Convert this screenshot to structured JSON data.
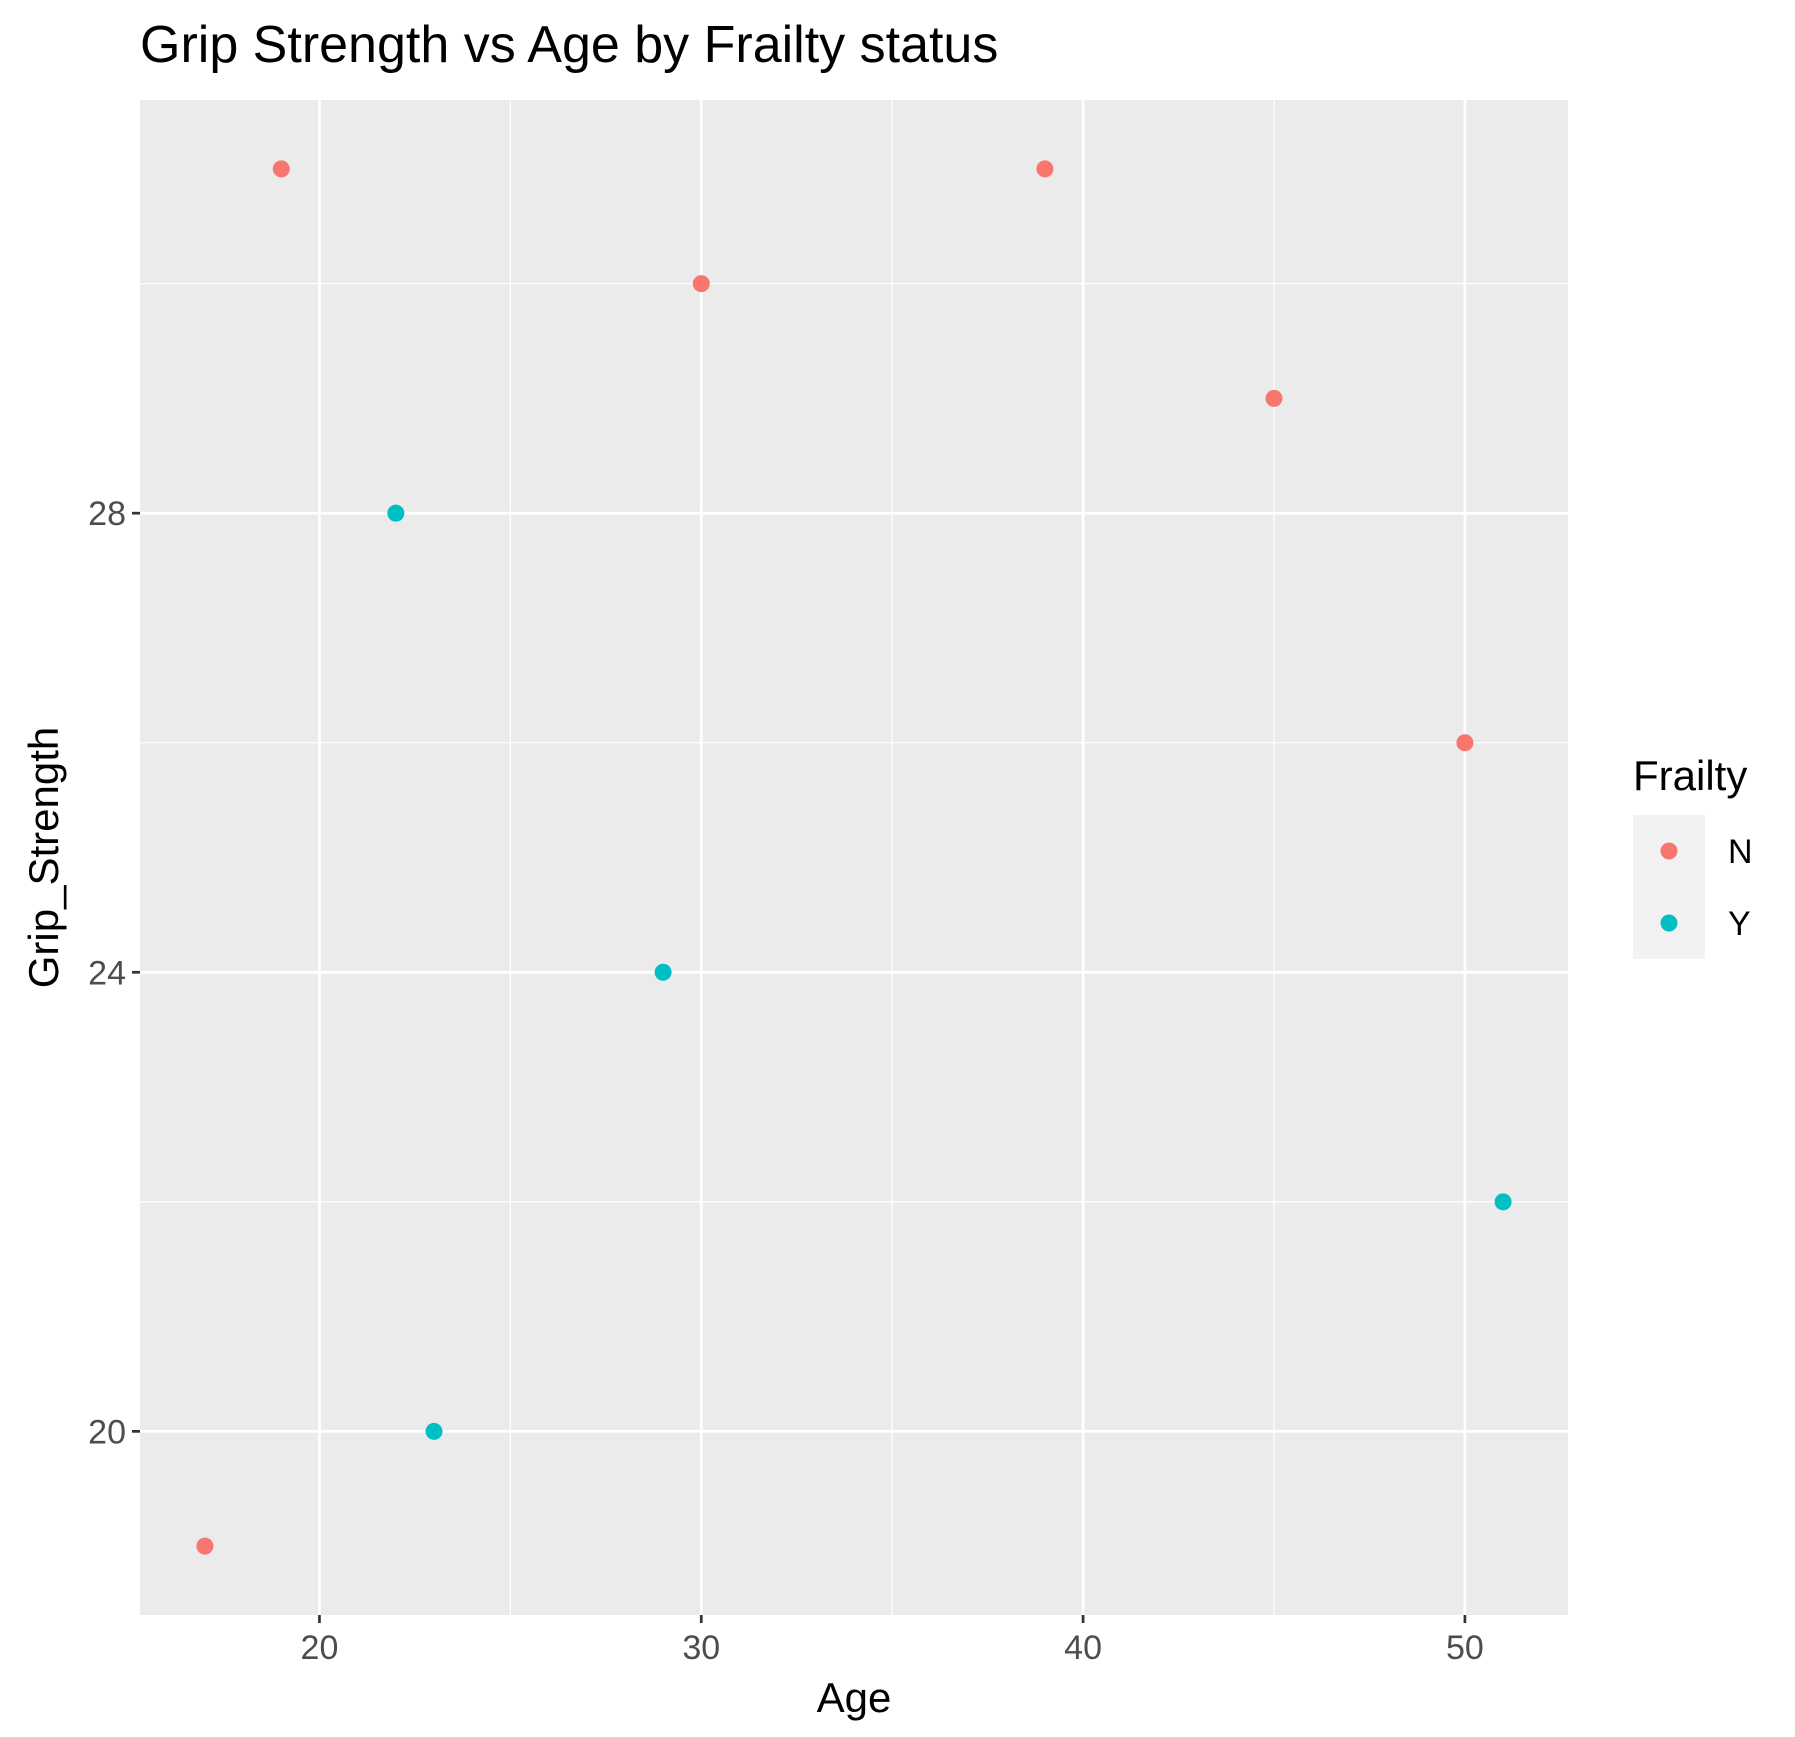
{
  "chart_data": {
    "type": "scatter",
    "title": "Grip Strength vs Age by Frailty status",
    "xlabel": "Age",
    "ylabel": "Grip_Strength",
    "xlim": [
      15.3,
      52.7
    ],
    "ylim": [
      18.4,
      31.6
    ],
    "x_ticks": [
      20,
      30,
      40,
      50
    ],
    "x_minor": [
      25,
      35,
      45
    ],
    "y_ticks": [
      20,
      24,
      28
    ],
    "y_minor": [
      22,
      26,
      30
    ],
    "grid": true,
    "legend": {
      "title": "Frailty",
      "position": "right",
      "entries": [
        {
          "label": "N",
          "color": "#F8766D"
        },
        {
          "label": "Y",
          "color": "#00BFC4"
        }
      ]
    },
    "series": [
      {
        "name": "N",
        "color": "#F8766D",
        "points": [
          [
            17,
            19
          ],
          [
            19,
            31
          ],
          [
            30,
            30
          ],
          [
            39,
            31
          ],
          [
            45,
            29
          ],
          [
            50,
            26
          ]
        ]
      },
      {
        "name": "Y",
        "color": "#00BFC4",
        "points": [
          [
            22,
            28
          ],
          [
            23,
            20
          ],
          [
            29,
            24
          ],
          [
            51,
            22
          ]
        ]
      }
    ]
  }
}
